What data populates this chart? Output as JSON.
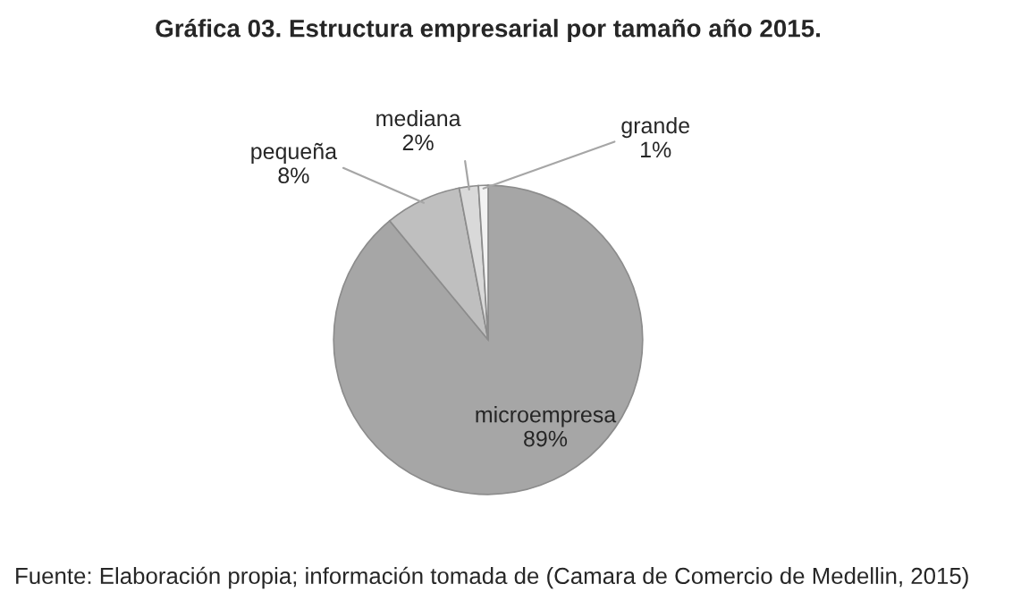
{
  "chart_data": {
    "type": "pie",
    "title": "Gráfica 03. Estructura empresarial por tamaño año 2015.",
    "categories": [
      "microempresa",
      "pequeña",
      "mediana",
      "grande"
    ],
    "values": [
      89,
      8,
      2,
      1
    ],
    "colors": [
      "#a6a6a6",
      "#bfbfbf",
      "#d9d9d9",
      "#f2f2f2"
    ],
    "value_labels": [
      "89%",
      "8%",
      "2%",
      "1%"
    ],
    "legend": false,
    "annotations": [
      "Fuente: Elaboración propia; información tomada de (Camara de Comercio de Medellin, 2015)"
    ]
  }
}
